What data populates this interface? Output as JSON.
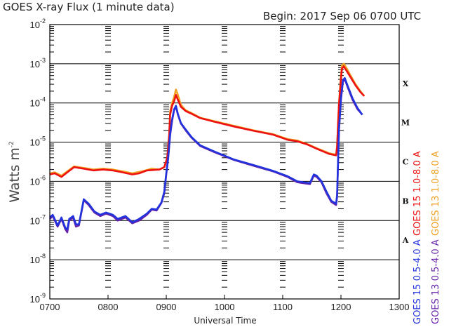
{
  "chart_data": {
    "type": "line",
    "title": "GOES X-ray Flux (1 minute data)",
    "begin_label": "Begin:  2017 Sep 06 0700 UTC",
    "xlabel": "Universal Time",
    "ylabel": "Watts m",
    "ylabel_sup": "-2",
    "x_ticks": [
      "0700",
      "0800",
      "0900",
      "1000",
      "1100",
      "1200",
      "1300"
    ],
    "y_ticks": [
      {
        "base": "10",
        "exp": "-9"
      },
      {
        "base": "10",
        "exp": "-8"
      },
      {
        "base": "10",
        "exp": "-7"
      },
      {
        "base": "10",
        "exp": "-6"
      },
      {
        "base": "10",
        "exp": "-5"
      },
      {
        "base": "10",
        "exp": "-4"
      },
      {
        "base": "10",
        "exp": "-3"
      },
      {
        "base": "10",
        "exp": "-2"
      }
    ],
    "xlim_minutes_utc": [
      420,
      780
    ],
    "ylim_log10": [
      -9,
      -2
    ],
    "y_scale": "log",
    "flare_classes": [
      {
        "label": "A",
        "log10_center": -7.5
      },
      {
        "label": "B",
        "log10_center": -6.5
      },
      {
        "label": "C",
        "log10_center": -5.5
      },
      {
        "label": "M",
        "log10_center": -4.5
      },
      {
        "label": "X",
        "log10_center": -3.5
      }
    ],
    "legend_right": "GOES 15 1.0-8.0 A",
    "legend_far_right": "GOES 13 1.0-8.0 A",
    "legend_right_low": "GOES 15 0.5-4.0 A",
    "legend_far_right_low": "GOES 13 0.5-4.0 A",
    "colors": {
      "goes15_long": "#ee1111",
      "goes13_long": "#f0a020",
      "goes15_short": "#2233dd",
      "goes13_short": "#6622aa",
      "grid": "#000000",
      "axis": "#000000"
    },
    "series": [
      {
        "name": "GOES 13 1.0-8.0 A",
        "color_key": "goes13_long",
        "points": [
          [
            420,
            1.6e-06
          ],
          [
            425,
            1.7e-06
          ],
          [
            432,
            1.4e-06
          ],
          [
            438,
            1.8e-06
          ],
          [
            445,
            2.4e-06
          ],
          [
            455,
            2.2e-06
          ],
          [
            465,
            2e-06
          ],
          [
            475,
            2.1e-06
          ],
          [
            485,
            2e-06
          ],
          [
            495,
            1.8e-06
          ],
          [
            505,
            1.6e-06
          ],
          [
            515,
            1.8e-06
          ],
          [
            525,
            2.1e-06
          ],
          [
            533,
            2e-06
          ],
          [
            538,
            2.3e-06
          ],
          [
            541,
            4e-06
          ],
          [
            543,
            1.5e-05
          ],
          [
            544,
            6e-05
          ],
          [
            546,
            0.0001
          ],
          [
            548,
            0.00014
          ],
          [
            550,
            0.00022
          ],
          [
            552,
            0.00016
          ],
          [
            555,
            9e-05
          ],
          [
            560,
            6.5e-05
          ],
          [
            566,
            5.5e-05
          ],
          [
            575,
            4.2e-05
          ],
          [
            590,
            3.4e-05
          ],
          [
            610,
            2.6e-05
          ],
          [
            630,
            2e-05
          ],
          [
            650,
            1.6e-05
          ],
          [
            665,
            1.2e-05
          ],
          [
            675,
            1.1e-05
          ],
          [
            685,
            9e-06
          ],
          [
            695,
            7e-06
          ],
          [
            708,
            5.2e-06
          ],
          [
            715,
            4.8e-06
          ],
          [
            716,
            8e-06
          ],
          [
            718,
            0.0001
          ],
          [
            720,
            0.0005
          ],
          [
            721,
            0.0009
          ],
          [
            723,
            0.001
          ],
          [
            726,
            0.00075
          ],
          [
            730,
            0.0005
          ],
          [
            735,
            0.0003
          ],
          [
            740,
            0.0002
          ],
          [
            744,
            0.00015
          ]
        ]
      },
      {
        "name": "GOES 15 1.0-8.0 A",
        "color_key": "goes15_long",
        "points": [
          [
            420,
            1.5e-06
          ],
          [
            425,
            1.6e-06
          ],
          [
            432,
            1.3e-06
          ],
          [
            438,
            1.7e-06
          ],
          [
            445,
            2.3e-06
          ],
          [
            455,
            2.1e-06
          ],
          [
            465,
            1.9e-06
          ],
          [
            475,
            2e-06
          ],
          [
            485,
            1.9e-06
          ],
          [
            495,
            1.7e-06
          ],
          [
            505,
            1.5e-06
          ],
          [
            512,
            1.6e-06
          ],
          [
            520,
            1.9e-06
          ],
          [
            533,
            2e-06
          ],
          [
            538,
            2.3e-06
          ],
          [
            541,
            4e-06
          ],
          [
            543,
            1.5e-05
          ],
          [
            544,
            5e-05
          ],
          [
            546,
            8.5e-05
          ],
          [
            548,
            0.00011
          ],
          [
            550,
            0.00016
          ],
          [
            552,
            0.00012
          ],
          [
            555,
            8e-05
          ],
          [
            560,
            6.2e-05
          ],
          [
            566,
            5.3e-05
          ],
          [
            575,
            4.1e-05
          ],
          [
            590,
            3.3e-05
          ],
          [
            610,
            2.5e-05
          ],
          [
            630,
            1.95e-05
          ],
          [
            650,
            1.55e-05
          ],
          [
            665,
            1.15e-05
          ],
          [
            675,
            1.05e-05
          ],
          [
            685,
            8.8e-06
          ],
          [
            695,
            6.8e-06
          ],
          [
            708,
            5e-06
          ],
          [
            715,
            4.6e-06
          ],
          [
            716,
            7.5e-06
          ],
          [
            718,
            9e-05
          ],
          [
            720,
            0.0004
          ],
          [
            721,
            0.00075
          ],
          [
            723,
            0.00085
          ],
          [
            726,
            0.00065
          ],
          [
            730,
            0.00045
          ],
          [
            735,
            0.00028
          ],
          [
            740,
            0.00019
          ],
          [
            744,
            0.00015
          ]
        ]
      },
      {
        "name": "GOES 13 0.5-4.0 A",
        "color_key": "goes13_short",
        "points": [
          [
            420,
            1.1e-07
          ],
          [
            423,
            1.3e-07
          ],
          [
            428,
            7e-08
          ],
          [
            432,
            1.1e-07
          ],
          [
            436,
            6e-08
          ],
          [
            438,
            5e-08
          ],
          [
            440,
            1e-07
          ],
          [
            444,
            1.2e-07
          ],
          [
            447,
            7e-08
          ],
          [
            450,
            7.5e-08
          ],
          [
            455,
            3.3e-07
          ],
          [
            460,
            2.5e-07
          ],
          [
            466,
            1.6e-07
          ],
          [
            472,
            1.3e-07
          ],
          [
            478,
            1.5e-07
          ],
          [
            485,
            1.3e-07
          ],
          [
            490,
            1e-07
          ],
          [
            498,
            1.2e-07
          ],
          [
            505,
            8.5e-08
          ],
          [
            512,
            1e-07
          ],
          [
            520,
            1.4e-07
          ],
          [
            525,
            1.9e-07
          ],
          [
            530,
            1.8e-07
          ],
          [
            535,
            2.8e-07
          ],
          [
            538,
            5e-07
          ],
          [
            540,
            1.5e-06
          ],
          [
            542,
            4e-06
          ],
          [
            544,
            1.5e-05
          ],
          [
            546,
            3.5e-05
          ],
          [
            548,
            6.5e-05
          ],
          [
            550,
            8e-05
          ],
          [
            552,
            5e-05
          ],
          [
            555,
            3e-05
          ],
          [
            560,
            2e-05
          ],
          [
            566,
            1.3e-05
          ],
          [
            575,
            8e-06
          ],
          [
            590,
            5.5e-06
          ],
          [
            610,
            3.5e-06
          ],
          [
            630,
            2.5e-06
          ],
          [
            650,
            1.8e-06
          ],
          [
            665,
            1.3e-06
          ],
          [
            675,
            9.5e-07
          ],
          [
            688,
            8.5e-07
          ],
          [
            692,
            1.4e-06
          ],
          [
            695,
            1.3e-06
          ],
          [
            700,
            9.5e-07
          ],
          [
            705,
            5e-07
          ],
          [
            710,
            3e-07
          ],
          [
            715,
            2.5e-07
          ],
          [
            716,
            4e-07
          ],
          [
            718,
            2e-05
          ],
          [
            720,
            0.00012
          ],
          [
            722,
            0.00035
          ],
          [
            724,
            0.0004
          ],
          [
            727,
            0.00025
          ],
          [
            732,
            0.00012
          ],
          [
            737,
            7e-05
          ],
          [
            742,
            5e-05
          ]
        ]
      },
      {
        "name": "GOES 15 0.5-4.0 A",
        "color_key": "goes15_short",
        "points": [
          [
            420,
            1.2e-07
          ],
          [
            423,
            1.4e-07
          ],
          [
            428,
            7.5e-08
          ],
          [
            432,
            1.2e-07
          ],
          [
            436,
            6.5e-08
          ],
          [
            438,
            6e-08
          ],
          [
            440,
            1.1e-07
          ],
          [
            444,
            1.3e-07
          ],
          [
            447,
            8e-08
          ],
          [
            450,
            8e-08
          ],
          [
            455,
            3.5e-07
          ],
          [
            460,
            2.7e-07
          ],
          [
            466,
            1.7e-07
          ],
          [
            472,
            1.4e-07
          ],
          [
            478,
            1.6e-07
          ],
          [
            485,
            1.4e-07
          ],
          [
            490,
            1.1e-07
          ],
          [
            498,
            1.3e-07
          ],
          [
            505,
            9e-08
          ],
          [
            512,
            1.1e-07
          ],
          [
            520,
            1.5e-07
          ],
          [
            525,
            2e-07
          ],
          [
            530,
            1.9e-07
          ],
          [
            535,
            2.9e-07
          ],
          [
            538,
            5.5e-07
          ],
          [
            540,
            1.6e-06
          ],
          [
            542,
            4.2e-06
          ],
          [
            544,
            1.6e-05
          ],
          [
            546,
            3.8e-05
          ],
          [
            548,
            6.8e-05
          ],
          [
            550,
            8.5e-05
          ],
          [
            552,
            5.2e-05
          ],
          [
            555,
            3.1e-05
          ],
          [
            560,
            2.1e-05
          ],
          [
            566,
            1.35e-05
          ],
          [
            575,
            8.3e-06
          ],
          [
            590,
            5.7e-06
          ],
          [
            610,
            3.6e-06
          ],
          [
            630,
            2.6e-06
          ],
          [
            650,
            1.85e-06
          ],
          [
            665,
            1.35e-06
          ],
          [
            675,
            1e-06
          ],
          [
            688,
            9e-07
          ],
          [
            692,
            1.5e-06
          ],
          [
            695,
            1.4e-06
          ],
          [
            700,
            1e-06
          ],
          [
            705,
            5.5e-07
          ],
          [
            710,
            3.2e-07
          ],
          [
            715,
            2.7e-07
          ],
          [
            716,
            4.5e-07
          ],
          [
            718,
            2.2e-05
          ],
          [
            720,
            0.00013
          ],
          [
            722,
            0.00038
          ],
          [
            724,
            0.00043
          ],
          [
            727,
            0.00027
          ],
          [
            732,
            0.00013
          ],
          [
            737,
            7.5e-05
          ],
          [
            742,
            5e-05
          ]
        ]
      }
    ]
  }
}
